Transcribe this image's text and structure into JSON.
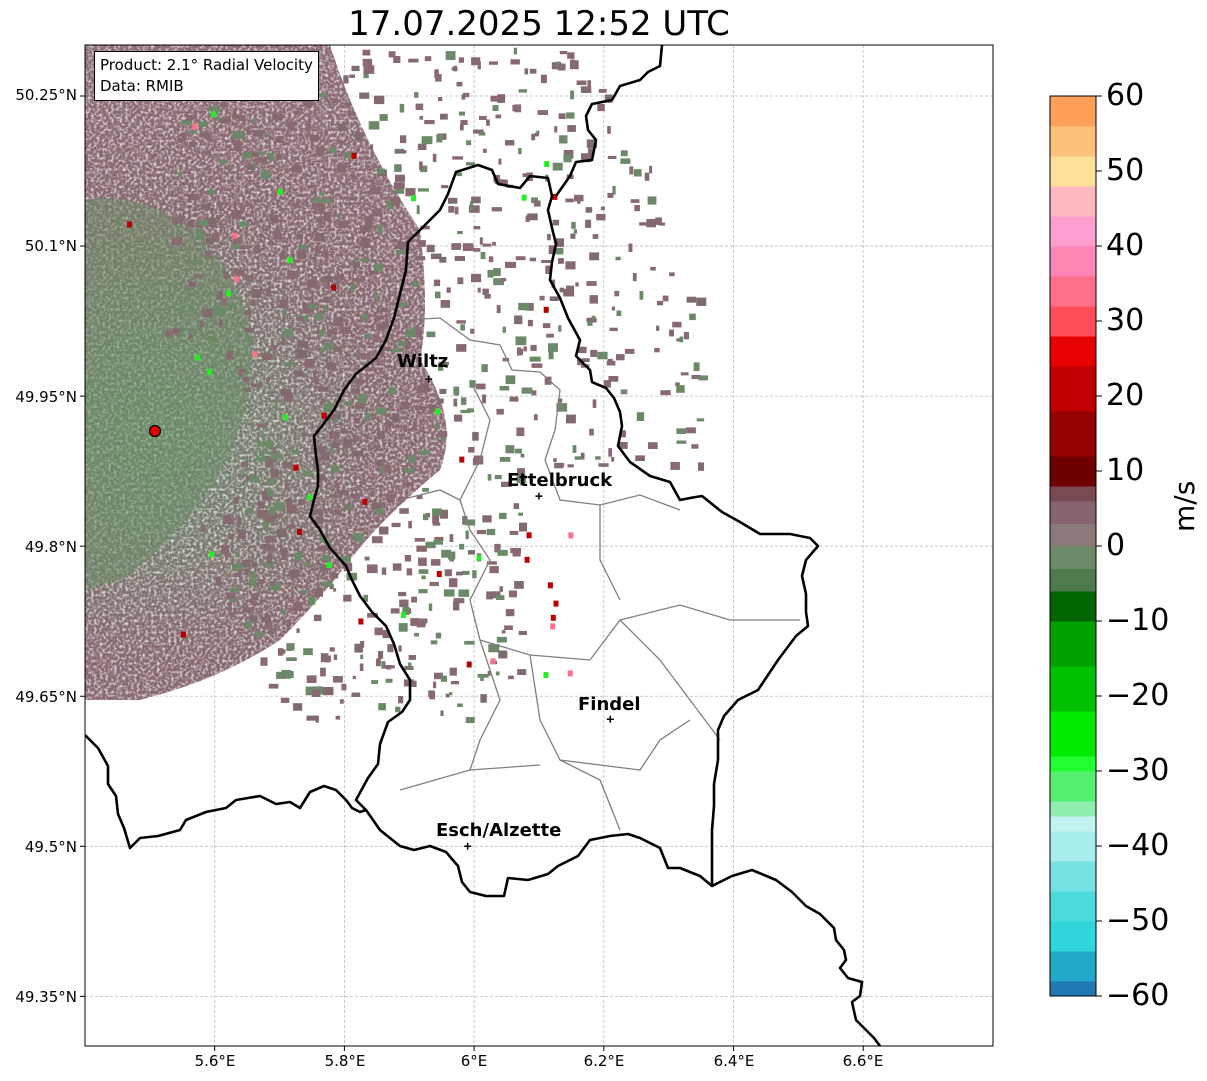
{
  "title": "17.07.2025 12:52 UTC",
  "info_box": {
    "product": "Product: 2.1° Radial Velocity",
    "data": "Data: RMIB"
  },
  "map": {
    "lon_range": [
      5.4,
      6.8
    ],
    "lat_range": [
      49.3,
      50.3
    ],
    "lat_ticks": [
      {
        "value": 50.25,
        "label": "50.25°N"
      },
      {
        "value": 50.1,
        "label": "50.1°N"
      },
      {
        "value": 49.95,
        "label": "49.95°N"
      },
      {
        "value": 49.8,
        "label": "49.8°N"
      },
      {
        "value": 49.65,
        "label": "49.65°N"
      },
      {
        "value": 49.5,
        "label": "49.5°N"
      },
      {
        "value": 49.35,
        "label": "49.35°N"
      }
    ],
    "lon_ticks": [
      {
        "value": 5.6,
        "label": "5.6°E"
      },
      {
        "value": 5.8,
        "label": "5.8°E"
      },
      {
        "value": 6.0,
        "label": "6°E"
      },
      {
        "value": 6.2,
        "label": "6.2°E"
      },
      {
        "value": 6.4,
        "label": "6.4°E"
      },
      {
        "value": 6.6,
        "label": "6.6°E"
      }
    ],
    "grid": true,
    "radar_site": {
      "lon": 5.505,
      "lat": 49.914
    },
    "cities": [
      {
        "name": "Wiltz",
        "lon": 5.93,
        "lat": 49.967
      },
      {
        "name": "Ettelbruck",
        "lon": 6.1,
        "lat": 49.85
      },
      {
        "name": "Findel",
        "lon": 6.21,
        "lat": 49.627
      },
      {
        "name": "Esch/Alzette",
        "lon": 5.99,
        "lat": 49.5
      }
    ]
  },
  "colorbar": {
    "unit": "m/s",
    "range": [
      -60,
      60
    ],
    "ticks": [
      "60",
      "50",
      "40",
      "30",
      "20",
      "10",
      "0",
      "−10",
      "−20",
      "−30",
      "−40",
      "−50",
      "−60"
    ],
    "tick_values": [
      60,
      50,
      40,
      30,
      20,
      10,
      0,
      -10,
      -20,
      -30,
      -40,
      -50,
      -60
    ],
    "stops": [
      {
        "from": -60,
        "to": -58,
        "color": "#1f77b4"
      },
      {
        "from": -58,
        "to": -54,
        "color": "#22a8c8"
      },
      {
        "from": -54,
        "to": -50,
        "color": "#2fd6dc"
      },
      {
        "from": -50,
        "to": -46,
        "color": "#4bdbdd"
      },
      {
        "from": -46,
        "to": -42,
        "color": "#74e2e2"
      },
      {
        "from": -42,
        "to": -38,
        "color": "#a8eded"
      },
      {
        "from": -38,
        "to": -36,
        "color": "#c4f2f0"
      },
      {
        "from": -36,
        "to": -34,
        "color": "#90eeb0"
      },
      {
        "from": -34,
        "to": -30,
        "color": "#55f070"
      },
      {
        "from": -30,
        "to": -28,
        "color": "#22ff33"
      },
      {
        "from": -28,
        "to": -22,
        "color": "#00ea00"
      },
      {
        "from": -22,
        "to": -16,
        "color": "#00c000"
      },
      {
        "from": -16,
        "to": -10,
        "color": "#00a000"
      },
      {
        "from": -10,
        "to": -6,
        "color": "#006400"
      },
      {
        "from": -6,
        "to": -3,
        "color": "#4e7a4e"
      },
      {
        "from": -3,
        "to": 0,
        "color": "#6a8a68"
      },
      {
        "from": 0,
        "to": 3,
        "color": "#8a7a7a"
      },
      {
        "from": 3,
        "to": 6,
        "color": "#866570"
      },
      {
        "from": 6,
        "to": 8,
        "color": "#7a4a52"
      },
      {
        "from": 8,
        "to": 12,
        "color": "#6e0000"
      },
      {
        "from": 12,
        "to": 18,
        "color": "#950000"
      },
      {
        "from": 18,
        "to": 24,
        "color": "#c00000"
      },
      {
        "from": 24,
        "to": 28,
        "color": "#e60000"
      },
      {
        "from": 28,
        "to": 32,
        "color": "#ff4d5a"
      },
      {
        "from": 32,
        "to": 36,
        "color": "#ff6f8a"
      },
      {
        "from": 36,
        "to": 40,
        "color": "#ff85b4"
      },
      {
        "from": 40,
        "to": 44,
        "color": "#ff9fd0"
      },
      {
        "from": 44,
        "to": 48,
        "color": "#ffb8c0"
      },
      {
        "from": 48,
        "to": 52,
        "color": "#ffe09a"
      },
      {
        "from": 52,
        "to": 56,
        "color": "#ffc07a"
      },
      {
        "from": 56,
        "to": 60,
        "color": "#ffa05a"
      }
    ]
  },
  "colors": {
    "border": "#000000",
    "canton_lines": "#7f7f7f",
    "echo_green": "#6c8a6a",
    "echo_mauve": "#8a6a72",
    "radar_marker": "#e00000"
  }
}
